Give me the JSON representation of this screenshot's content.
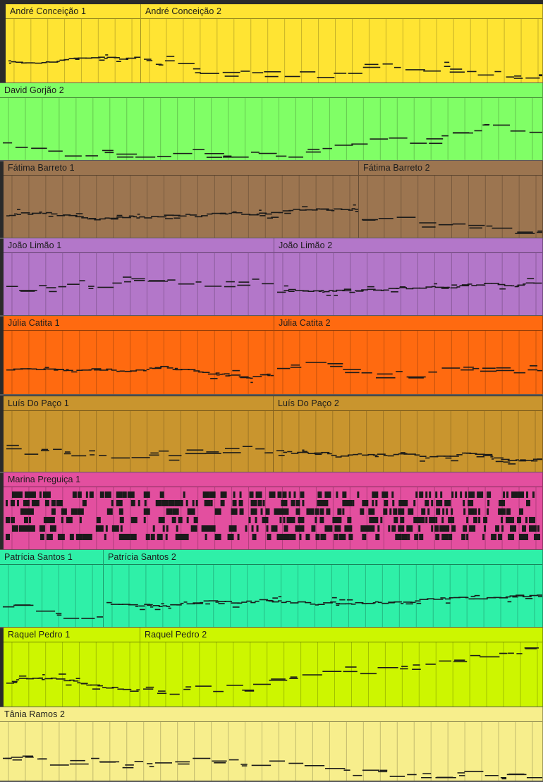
{
  "tracks": [
    {
      "color": "#ffe433",
      "style": "melody",
      "clips": [
        {
          "name": "André Conceição 1"
        },
        {
          "name": "André Conceição 2"
        }
      ]
    },
    {
      "color": "#80ff66",
      "style": "melody",
      "clips": [
        {
          "name": "David Gorjão 2"
        }
      ]
    },
    {
      "color": "#9c7550",
      "style": "melody",
      "clips": [
        {
          "name": "Fátima Barreto 1"
        },
        {
          "name": "Fátima Barreto 2"
        }
      ]
    },
    {
      "color": "#b377c9",
      "style": "melody",
      "clips": [
        {
          "name": "João Limão 1"
        },
        {
          "name": "João Limão 2"
        }
      ]
    },
    {
      "color": "#ff6a10",
      "style": "melody",
      "clips": [
        {
          "name": "Júlia Catita 1"
        },
        {
          "name": "Júlia Catita 2"
        }
      ]
    },
    {
      "color": "#c9952e",
      "style": "melody",
      "clips": [
        {
          "name": "Luís Do Paço 1"
        },
        {
          "name": "Luís Do Paço 2"
        }
      ]
    },
    {
      "color": "#e34f9f",
      "style": "drums",
      "clips": [
        {
          "name": "Marina Preguiça 1"
        }
      ]
    },
    {
      "color": "#2ff0a8",
      "style": "melody",
      "clips": [
        {
          "name": "Patrícia Santos 1"
        },
        {
          "name": "Patrícia Santos 2"
        }
      ]
    },
    {
      "color": "#cdf600",
      "style": "melody",
      "clips": [
        {
          "name": "Raquel Pedro 1"
        },
        {
          "name": "Raquel Pedro 2"
        }
      ]
    },
    {
      "color": "#f7ee8c",
      "style": "melody",
      "clips": [
        {
          "name": "Tânia Ramos 2"
        }
      ]
    }
  ]
}
